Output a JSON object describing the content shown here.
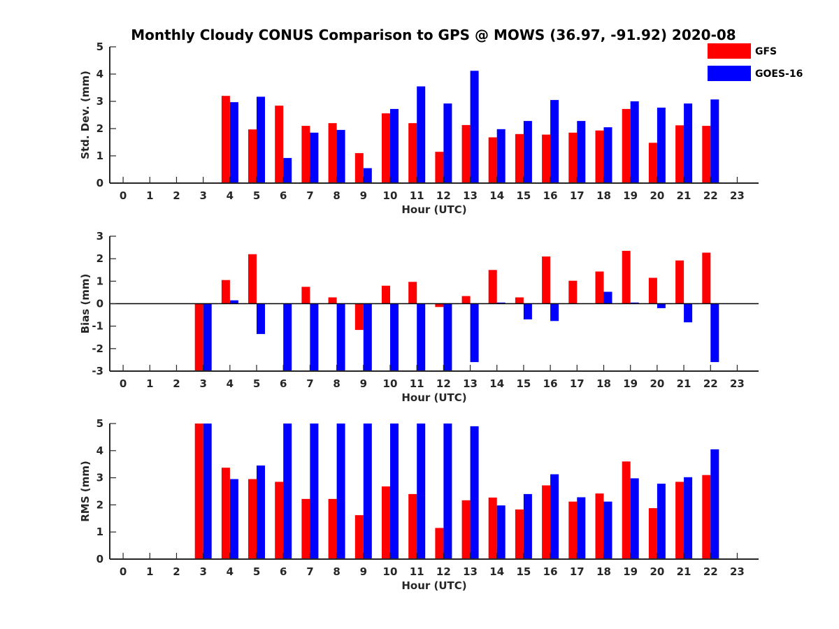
{
  "figure_title": "Monthly Cloudy CONUS Comparison to GPS @ MOWS (36.97, -91.92) 2020-08",
  "legend": [
    {
      "name": "GFS",
      "color": "#ff0000"
    },
    {
      "name": "GOES-16",
      "color": "#0000ff"
    }
  ],
  "chart_data": [
    {
      "type": "bar",
      "title": "Monthly Cloudy CONUS Comparison to GPS @ MOWS (36.97, -91.92) 2020-08",
      "xlabel": "Hour (UTC)",
      "ylabel": "Std. Dev. (mm)",
      "xlim": [
        -0.5,
        23.8
      ],
      "ylim": [
        0,
        5
      ],
      "x_ticks": [
        0,
        1,
        2,
        3,
        4,
        5,
        6,
        7,
        8,
        9,
        10,
        11,
        12,
        13,
        14,
        15,
        16,
        17,
        18,
        19,
        20,
        21,
        22,
        23
      ],
      "y_ticks": [
        0,
        1,
        2,
        3,
        4,
        5
      ],
      "legend_position": "top-right",
      "grid": false,
      "series": [
        {
          "name": "GFS",
          "color": "#ff0000",
          "values": [
            null,
            null,
            null,
            null,
            3.2,
            1.97,
            2.84,
            2.1,
            2.2,
            1.1,
            2.56,
            2.2,
            1.15,
            2.13,
            1.68,
            1.8,
            1.78,
            1.85,
            1.93,
            2.72,
            1.48,
            2.12,
            2.1,
            null
          ]
        },
        {
          "name": "GOES-16",
          "color": "#0000ff",
          "values": [
            null,
            null,
            null,
            null,
            2.97,
            3.17,
            0.92,
            1.85,
            1.95,
            0.55,
            2.72,
            3.55,
            2.92,
            4.12,
            1.98,
            2.28,
            3.05,
            2.28,
            2.05,
            3.0,
            2.77,
            2.92,
            3.07,
            null
          ]
        }
      ]
    },
    {
      "type": "bar",
      "xlabel": "Hour (UTC)",
      "ylabel": "Bias (mm)",
      "xlim": [
        -0.5,
        23.8
      ],
      "ylim": [
        -3,
        3
      ],
      "x_ticks": [
        0,
        1,
        2,
        3,
        4,
        5,
        6,
        7,
        8,
        9,
        10,
        11,
        12,
        13,
        14,
        15,
        16,
        17,
        18,
        19,
        20,
        21,
        22,
        23
      ],
      "y_ticks": [
        -3,
        -2,
        -1,
        0,
        1,
        2,
        3
      ],
      "zero_line": true,
      "grid": false,
      "series": [
        {
          "name": "GFS",
          "color": "#ff0000",
          "values": [
            null,
            null,
            null,
            -3,
            1.05,
            2.2,
            null,
            0.75,
            0.28,
            -1.17,
            0.8,
            0.97,
            -0.15,
            0.34,
            1.5,
            0.28,
            2.1,
            1.02,
            1.43,
            2.35,
            1.15,
            1.92,
            2.27,
            null
          ]
        },
        {
          "name": "GOES-16",
          "color": "#0000ff",
          "values": [
            null,
            null,
            null,
            -3,
            0.15,
            -1.35,
            -3,
            -3,
            -3,
            -3,
            -3,
            -3,
            -3,
            -2.6,
            0.05,
            -0.7,
            -0.77,
            null,
            0.53,
            0.05,
            -0.2,
            -0.83,
            -2.6,
            null
          ]
        }
      ]
    },
    {
      "type": "bar",
      "xlabel": "Hour (UTC)",
      "ylabel": "RMS (mm)",
      "xlim": [
        -0.5,
        23.8
      ],
      "ylim": [
        0,
        5
      ],
      "x_ticks": [
        0,
        1,
        2,
        3,
        4,
        5,
        6,
        7,
        8,
        9,
        10,
        11,
        12,
        13,
        14,
        15,
        16,
        17,
        18,
        19,
        20,
        21,
        22,
        23
      ],
      "y_ticks": [
        0,
        1,
        2,
        3,
        4,
        5
      ],
      "grid": false,
      "series": [
        {
          "name": "GFS",
          "color": "#ff0000",
          "values": [
            null,
            null,
            null,
            5,
            3.37,
            2.95,
            2.85,
            2.22,
            2.22,
            1.62,
            2.68,
            2.4,
            1.15,
            2.17,
            2.27,
            1.83,
            2.72,
            2.12,
            2.42,
            3.6,
            1.88,
            2.85,
            3.1,
            null
          ]
        },
        {
          "name": "GOES-16",
          "color": "#0000ff",
          "values": [
            null,
            null,
            null,
            5,
            2.95,
            3.45,
            5,
            5,
            5,
            5,
            5,
            5,
            5,
            4.9,
            1.98,
            2.4,
            3.13,
            2.28,
            2.12,
            2.98,
            2.78,
            3.02,
            4.05,
            null
          ]
        }
      ]
    }
  ]
}
